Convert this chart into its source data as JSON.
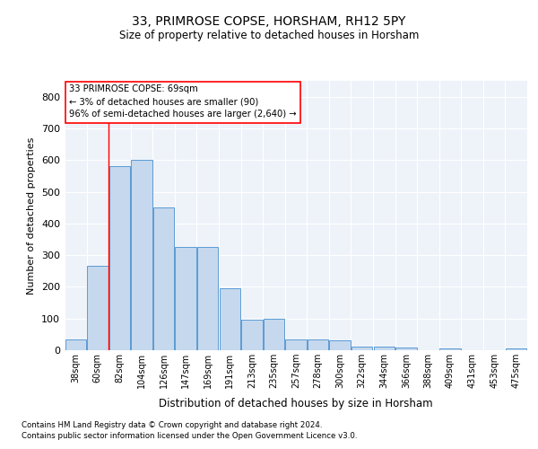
{
  "title": "33, PRIMROSE COPSE, HORSHAM, RH12 5PY",
  "subtitle": "Size of property relative to detached houses in Horsham",
  "xlabel": "Distribution of detached houses by size in Horsham",
  "ylabel": "Number of detached properties",
  "bar_color": "#c5d8ed",
  "bar_edge_color": "#5b9bd5",
  "categories": [
    "38sqm",
    "60sqm",
    "82sqm",
    "104sqm",
    "126sqm",
    "147sqm",
    "169sqm",
    "191sqm",
    "213sqm",
    "235sqm",
    "257sqm",
    "278sqm",
    "300sqm",
    "322sqm",
    "344sqm",
    "366sqm",
    "388sqm",
    "409sqm",
    "431sqm",
    "453sqm",
    "475sqm"
  ],
  "values": [
    35,
    265,
    580,
    600,
    450,
    327,
    327,
    195,
    95,
    100,
    35,
    35,
    30,
    12,
    12,
    9,
    0,
    7,
    0,
    0,
    5
  ],
  "ylim": [
    0,
    850
  ],
  "yticks": [
    0,
    100,
    200,
    300,
    400,
    500,
    600,
    700,
    800
  ],
  "annotation_box": {
    "line1": "33 PRIMROSE COPSE: 69sqm",
    "line2": "← 3% of detached houses are smaller (90)",
    "line3": "96% of semi-detached houses are larger (2,640) →"
  },
  "vline_x": 1.5,
  "bg_color": "#eef3f9",
  "footer1": "Contains HM Land Registry data © Crown copyright and database right 2024.",
  "footer2": "Contains public sector information licensed under the Open Government Licence v3.0."
}
